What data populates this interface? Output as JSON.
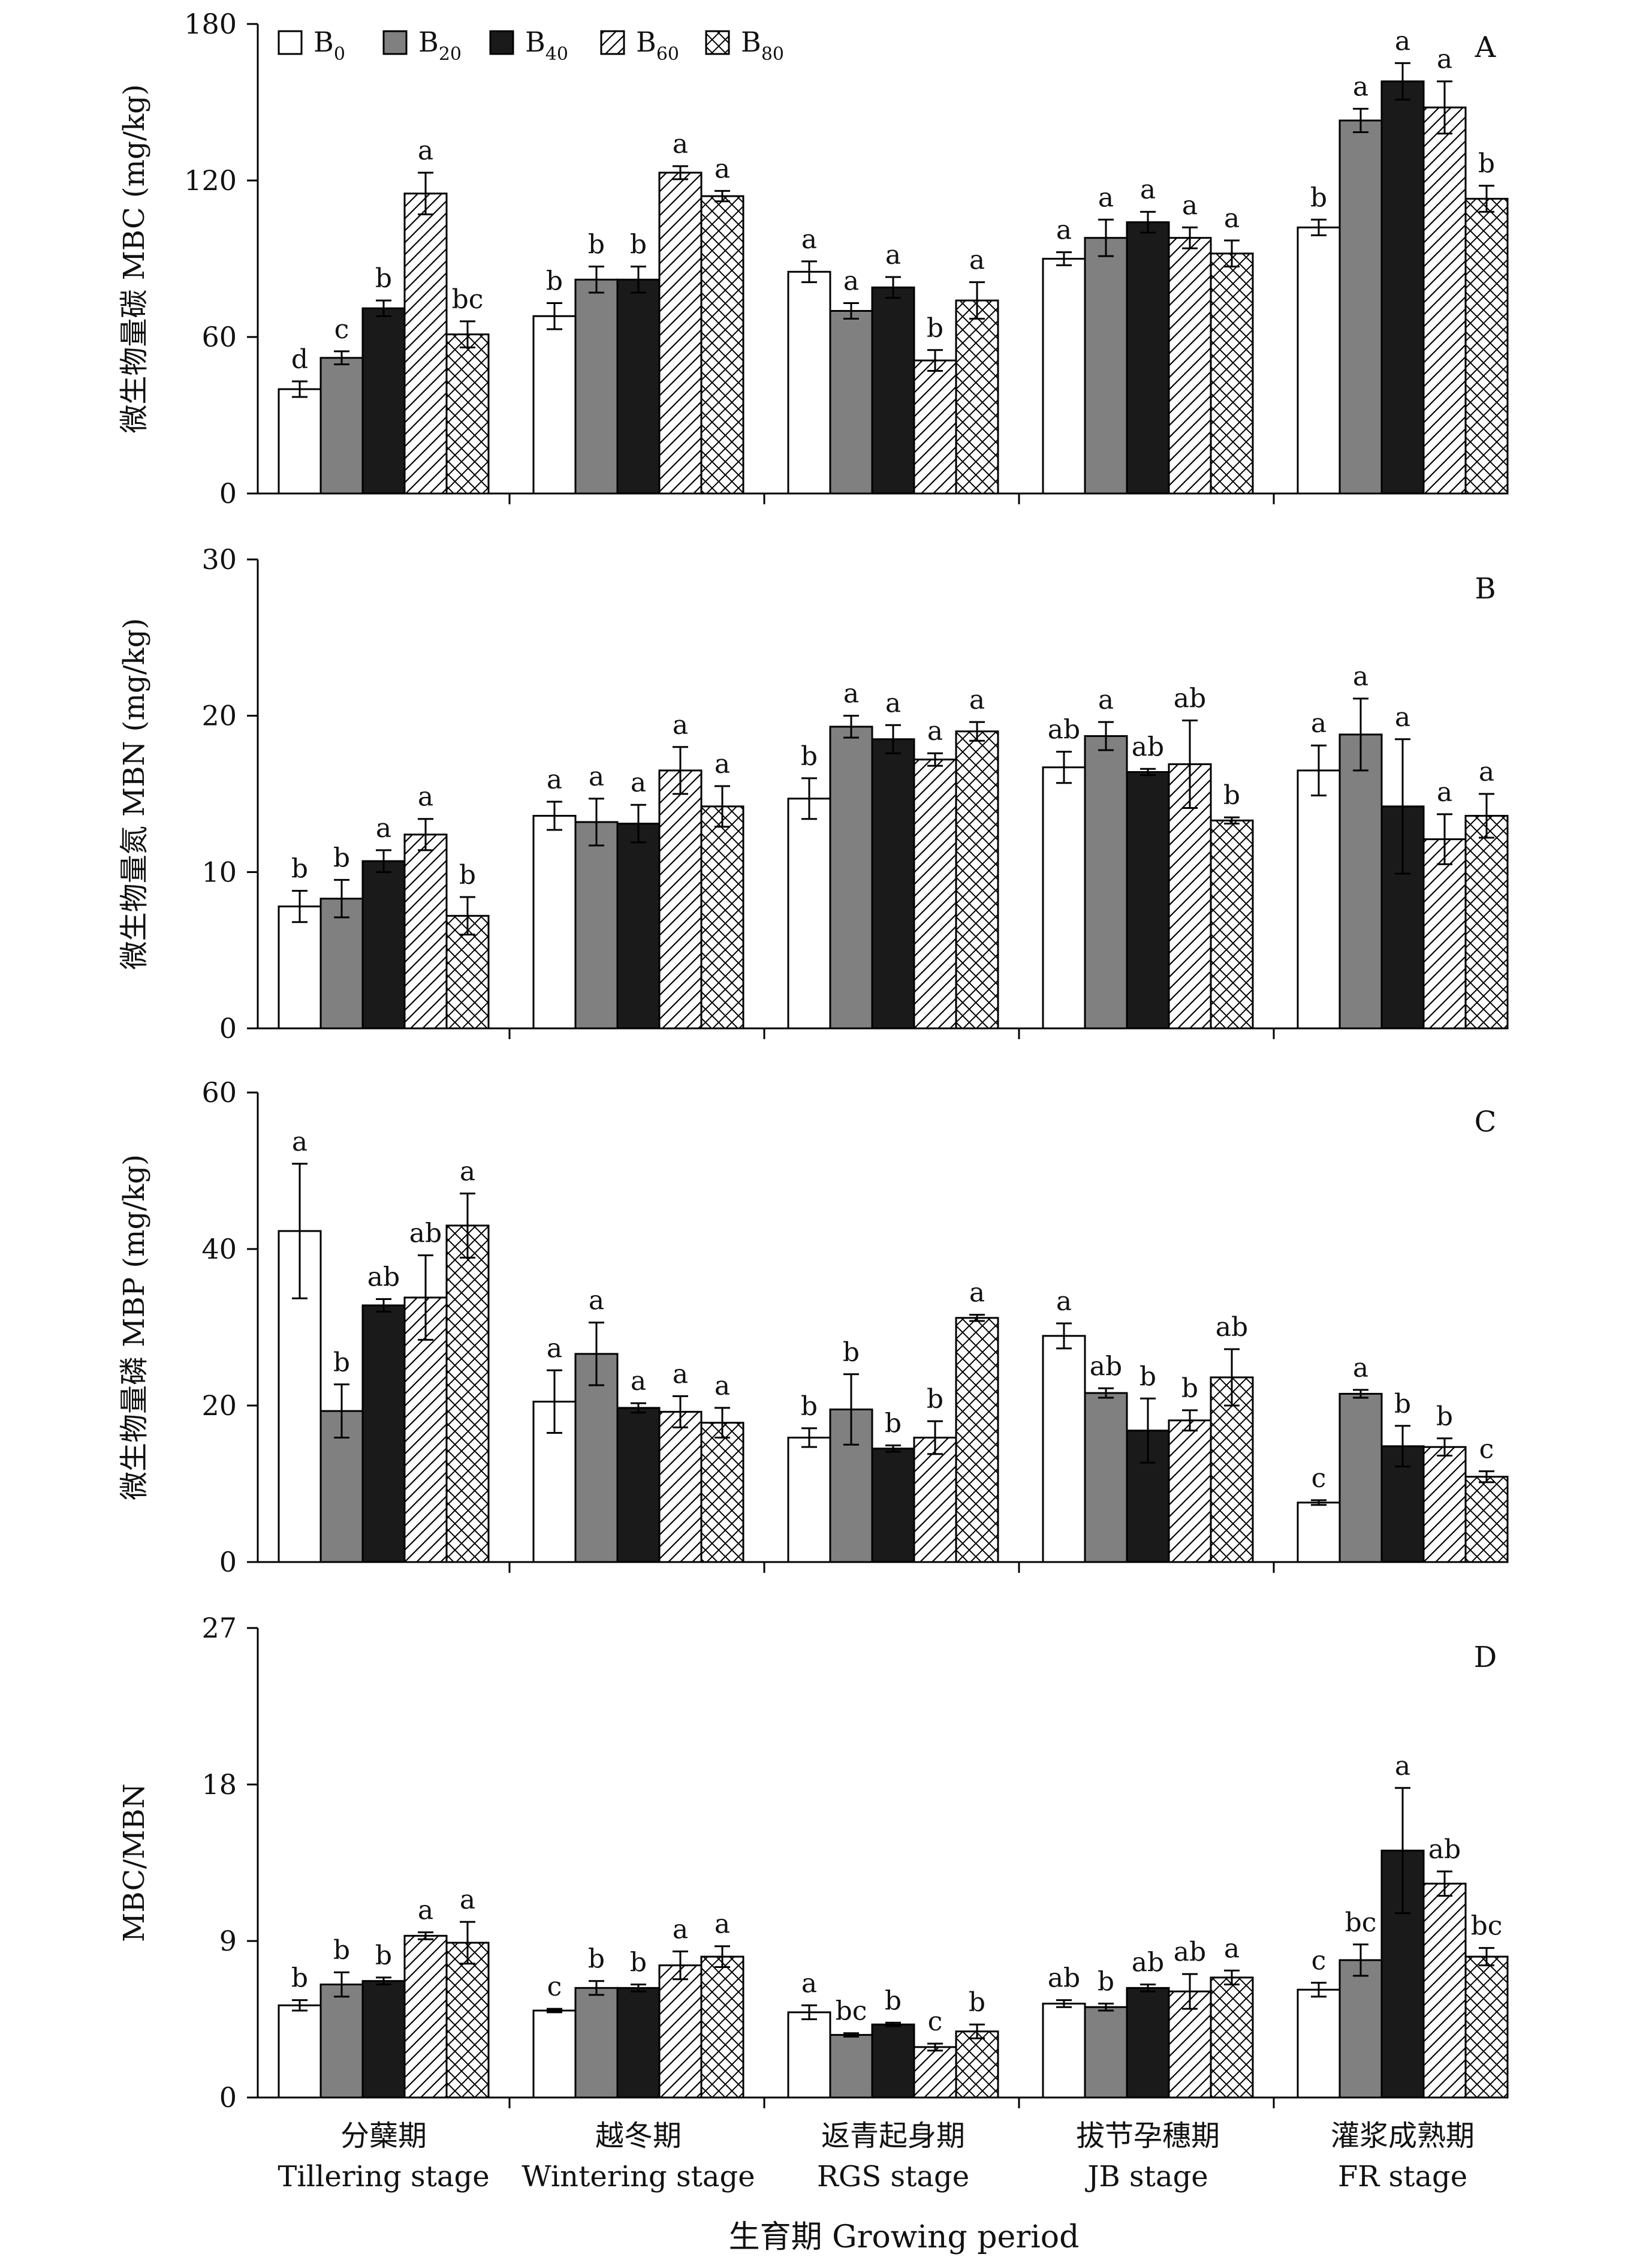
{
  "figure": {
    "xlabel": "生育期 Growing period",
    "legend": [
      {
        "key": "B0",
        "base": "B",
        "sub": "0",
        "fill": "white"
      },
      {
        "key": "B20",
        "base": "B",
        "sub": "20",
        "fill": "gray"
      },
      {
        "key": "B40",
        "base": "B",
        "sub": "40",
        "fill": "black"
      },
      {
        "key": "B60",
        "base": "B",
        "sub": "60",
        "fill": "hatch"
      },
      {
        "key": "B80",
        "base": "B",
        "sub": "80",
        "fill": "cross"
      }
    ],
    "stages": [
      {
        "zh": "分蘖期",
        "en": "Tillering stage"
      },
      {
        "zh": "越冬期",
        "en": "Wintering stage"
      },
      {
        "zh": "返青起身期",
        "en": "RGS stage"
      },
      {
        "zh": "拔节孕穗期",
        "en": "JB stage"
      },
      {
        "zh": "灌浆成熟期",
        "en": "FR stage"
      }
    ]
  },
  "colors": {
    "gray": "#808080",
    "black": "#1a1a1a",
    "white": "#ffffff",
    "axis": "#000000"
  },
  "chart_data": [
    {
      "type": "bar",
      "panel": "A",
      "ylabel": "微生物量碳 MBC (mg/kg)",
      "ylim": [
        0,
        180
      ],
      "yticks": [
        0,
        60,
        120,
        180
      ],
      "categories": [
        "分蘖期 Tillering stage",
        "越冬期 Wintering stage",
        "返青起身期 RGS stage",
        "拔节孕穗期 JB stage",
        "灌浆成熟期 FR stage"
      ],
      "series": [
        {
          "name": "B0",
          "values": [
            40,
            68,
            85,
            90,
            102
          ],
          "err": [
            3,
            5,
            4,
            2.5,
            3
          ],
          "letters": [
            "d",
            "b",
            "a",
            "a",
            "b"
          ]
        },
        {
          "name": "B20",
          "values": [
            52,
            82,
            70,
            98,
            143
          ],
          "err": [
            2.5,
            5,
            3,
            7,
            4.5
          ],
          "letters": [
            "c",
            "b",
            "a",
            "a",
            "a"
          ]
        },
        {
          "name": "B40",
          "values": [
            71,
            82,
            79,
            104,
            158
          ],
          "err": [
            3,
            5,
            4,
            4,
            7
          ],
          "letters": [
            "b",
            "b",
            "a",
            "a",
            "a"
          ]
        },
        {
          "name": "B60",
          "values": [
            115,
            123,
            51,
            98,
            148
          ],
          "err": [
            8,
            2.5,
            4,
            4,
            10
          ],
          "letters": [
            "a",
            "a",
            "b",
            "a",
            "a"
          ]
        },
        {
          "name": "B80",
          "values": [
            61,
            114,
            74,
            92,
            113
          ],
          "err": [
            5,
            2,
            7,
            5,
            5
          ],
          "letters": [
            "bc",
            "a",
            "a",
            "a",
            "b"
          ]
        }
      ]
    },
    {
      "type": "bar",
      "panel": "B",
      "ylabel": "微生物量氮 MBN (mg/kg)",
      "ylim": [
        0,
        30
      ],
      "yticks": [
        0,
        10,
        20,
        30
      ],
      "categories": [
        "分蘖期 Tillering stage",
        "越冬期 Wintering stage",
        "返青起身期 RGS stage",
        "拔节孕穗期 JB stage",
        "灌浆成熟期 FR stage"
      ],
      "series": [
        {
          "name": "B0",
          "values": [
            7.8,
            13.6,
            14.7,
            16.7,
            16.5
          ],
          "err": [
            1.0,
            0.9,
            1.3,
            1.0,
            1.6
          ],
          "letters": [
            "b",
            "a",
            "b",
            "ab",
            "a"
          ]
        },
        {
          "name": "B20",
          "values": [
            8.3,
            13.2,
            19.3,
            18.7,
            18.8
          ],
          "err": [
            1.2,
            1.5,
            0.7,
            0.9,
            2.3
          ],
          "letters": [
            "b",
            "a",
            "a",
            "a",
            "a"
          ]
        },
        {
          "name": "B40",
          "values": [
            10.7,
            13.1,
            18.5,
            16.4,
            14.2
          ],
          "err": [
            0.7,
            1.2,
            0.9,
            0.2,
            4.3
          ],
          "letters": [
            "a",
            "a",
            "a",
            "ab",
            "a"
          ]
        },
        {
          "name": "B60",
          "values": [
            12.4,
            16.5,
            17.2,
            16.9,
            12.1
          ],
          "err": [
            1.0,
            1.5,
            0.4,
            2.8,
            1.6
          ],
          "letters": [
            "a",
            "a",
            "a",
            "ab",
            "a"
          ]
        },
        {
          "name": "B80",
          "values": [
            7.2,
            14.2,
            19.0,
            13.3,
            13.6
          ],
          "err": [
            1.2,
            1.3,
            0.6,
            0.2,
            1.4
          ],
          "letters": [
            "b",
            "a",
            "a",
            "b",
            "a"
          ]
        }
      ]
    },
    {
      "type": "bar",
      "panel": "C",
      "ylabel": "微生物量磷 MBP (mg/kg)",
      "ylim": [
        0,
        60
      ],
      "yticks": [
        0,
        20,
        40,
        60
      ],
      "categories": [
        "分蘖期 Tillering stage",
        "越冬期 Wintering stage",
        "返青起身期 RGS stage",
        "拔节孕穗期 JB stage",
        "灌浆成熟期 FR stage"
      ],
      "series": [
        {
          "name": "B0",
          "values": [
            42.3,
            20.5,
            15.9,
            28.9,
            7.6
          ],
          "err": [
            8.6,
            4.0,
            1.2,
            1.6,
            0.3
          ],
          "letters": [
            "a",
            "a",
            "b",
            "a",
            "c"
          ]
        },
        {
          "name": "B20",
          "values": [
            19.3,
            26.6,
            19.5,
            21.6,
            21.5
          ],
          "err": [
            3.4,
            4.0,
            4.5,
            0.6,
            0.5
          ],
          "letters": [
            "b",
            "a",
            "b",
            "ab",
            "a"
          ]
        },
        {
          "name": "B40",
          "values": [
            32.8,
            19.7,
            14.5,
            16.8,
            14.8
          ],
          "err": [
            0.8,
            0.6,
            0.4,
            4.1,
            2.6
          ],
          "letters": [
            "ab",
            "a",
            "b",
            "b",
            "b"
          ]
        },
        {
          "name": "B60",
          "values": [
            33.8,
            19.2,
            15.9,
            18.1,
            14.7
          ],
          "err": [
            5.4,
            2.0,
            2.1,
            1.3,
            1.1
          ],
          "letters": [
            "ab",
            "a",
            "b",
            "b",
            "b"
          ]
        },
        {
          "name": "B80",
          "values": [
            43.0,
            17.8,
            31.2,
            23.6,
            10.9
          ],
          "err": [
            4.1,
            1.9,
            0.4,
            3.6,
            0.7
          ],
          "letters": [
            "a",
            "a",
            "a",
            "ab",
            "c"
          ]
        }
      ]
    },
    {
      "type": "bar",
      "panel": "D",
      "ylabel": "MBC/MBN",
      "ylim": [
        0,
        27
      ],
      "yticks": [
        0,
        9,
        18,
        27
      ],
      "categories": [
        "分蘖期 Tillering stage",
        "越冬期 Wintering stage",
        "返青起身期 RGS stage",
        "拔节孕穗期 JB stage",
        "灌浆成熟期 FR stage"
      ],
      "series": [
        {
          "name": "B0",
          "values": [
            5.3,
            5.0,
            4.9,
            5.4,
            6.2
          ],
          "err": [
            0.3,
            0.1,
            0.4,
            0.2,
            0.4
          ],
          "letters": [
            "b",
            "c",
            "a",
            "ab",
            "c"
          ]
        },
        {
          "name": "B20",
          "values": [
            6.5,
            6.3,
            3.6,
            5.2,
            7.9
          ],
          "err": [
            0.7,
            0.4,
            0.1,
            0.2,
            0.9
          ],
          "letters": [
            "b",
            "b",
            "bc",
            "b",
            "bc"
          ]
        },
        {
          "name": "B40",
          "values": [
            6.7,
            6.3,
            4.2,
            6.3,
            14.2
          ],
          "err": [
            0.2,
            0.2,
            0.1,
            0.2,
            3.6
          ],
          "letters": [
            "b",
            "b",
            "b",
            "ab",
            "a"
          ]
        },
        {
          "name": "B60",
          "values": [
            9.3,
            7.6,
            2.9,
            6.1,
            12.3
          ],
          "err": [
            0.2,
            0.8,
            0.2,
            1.0,
            0.7
          ],
          "letters": [
            "a",
            "a",
            "c",
            "ab",
            "ab"
          ]
        },
        {
          "name": "B80",
          "values": [
            8.9,
            8.1,
            3.8,
            6.9,
            8.1
          ],
          "err": [
            1.2,
            0.6,
            0.4,
            0.4,
            0.5
          ],
          "letters": [
            "a",
            "a",
            "b",
            "a",
            "bc"
          ]
        }
      ]
    }
  ]
}
